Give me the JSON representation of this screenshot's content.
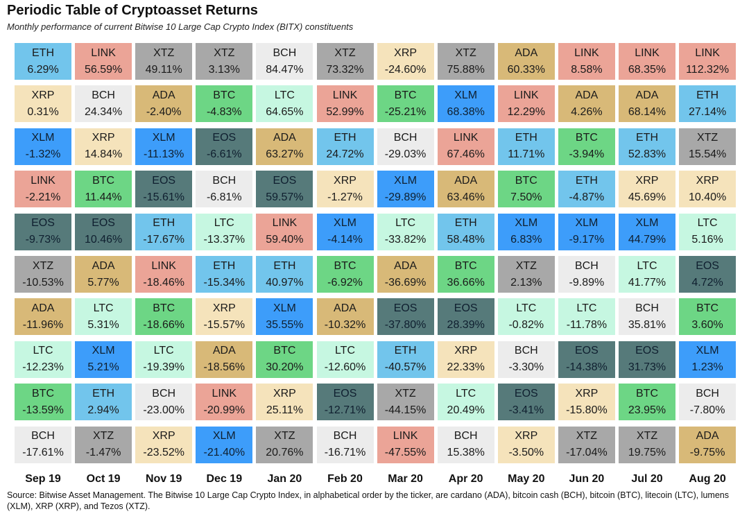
{
  "chart_data": {
    "type": "table",
    "title": "Periodic Table of Cryptoasset Returns",
    "subtitle": "Monthly performance of current Bitwise 10 Large Cap Crypto Index (BITX) constituents",
    "source": "Source: Bitwise Asset Management. The Bitwise 10 Large Cap Crypto Index, in alphabetical order by the ticker, are cardano (ADA), bitcoin cash (BCH), bitcoin (BTC), litecoin (LTC), lumens (XLM), XRP (XRP), and Tezos (XTZ).",
    "months": [
      "Sep 19",
      "Oct 19",
      "Nov 19",
      "Dec 19",
      "Jan 20",
      "Feb 20",
      "Mar 20",
      "Apr 20",
      "May 20",
      "Jun 20",
      "Jul 20",
      "Aug 20"
    ],
    "colors": {
      "ETH": "#72c5ec",
      "LINK": "#eba497",
      "XTZ": "#a8a8a8",
      "BCH": "#ececec",
      "XRP": "#f5e3bb",
      "ADA": "#d8b978",
      "BTC": "#6dd685",
      "LTC": "#c6f7e1",
      "XLM": "#3d9dfa",
      "EOS": "#567a7a"
    },
    "columns": [
      [
        [
          "ETH",
          "6.29%"
        ],
        [
          "XRP",
          "0.31%"
        ],
        [
          "XLM",
          "-1.32%"
        ],
        [
          "LINK",
          "-2.21%"
        ],
        [
          "EOS",
          "-9.73%"
        ],
        [
          "XTZ",
          "-10.53%"
        ],
        [
          "ADA",
          "-11.96%"
        ],
        [
          "LTC",
          "-12.23%"
        ],
        [
          "BTC",
          "-13.59%"
        ],
        [
          "BCH",
          "-17.61%"
        ]
      ],
      [
        [
          "LINK",
          "56.59%"
        ],
        [
          "BCH",
          "24.34%"
        ],
        [
          "XRP",
          "14.84%"
        ],
        [
          "BTC",
          "11.44%"
        ],
        [
          "EOS",
          "10.46%"
        ],
        [
          "ADA",
          "5.77%"
        ],
        [
          "LTC",
          "5.31%"
        ],
        [
          "XLM",
          "5.21%"
        ],
        [
          "ETH",
          "2.94%"
        ],
        [
          "XTZ",
          "-1.47%"
        ]
      ],
      [
        [
          "XTZ",
          "49.11%"
        ],
        [
          "ADA",
          "-2.40%"
        ],
        [
          "XLM",
          "-11.13%"
        ],
        [
          "EOS",
          "-15.61%"
        ],
        [
          "ETH",
          "-17.67%"
        ],
        [
          "LINK",
          "-18.46%"
        ],
        [
          "BTC",
          "-18.66%"
        ],
        [
          "LTC",
          "-19.39%"
        ],
        [
          "BCH",
          "-23.00%"
        ],
        [
          "XRP",
          "-23.52%"
        ]
      ],
      [
        [
          "XTZ",
          "3.13%"
        ],
        [
          "BTC",
          "-4.83%"
        ],
        [
          "EOS",
          "-6.61%"
        ],
        [
          "BCH",
          "-6.81%"
        ],
        [
          "LTC",
          "-13.37%"
        ],
        [
          "ETH",
          "-15.34%"
        ],
        [
          "XRP",
          "-15.57%"
        ],
        [
          "ADA",
          "-18.56%"
        ],
        [
          "LINK",
          "-20.99%"
        ],
        [
          "XLM",
          "-21.40%"
        ]
      ],
      [
        [
          "BCH",
          "84.47%"
        ],
        [
          "LTC",
          "64.65%"
        ],
        [
          "ADA",
          "63.27%"
        ],
        [
          "EOS",
          "59.57%"
        ],
        [
          "LINK",
          "59.40%"
        ],
        [
          "ETH",
          "40.97%"
        ],
        [
          "XLM",
          "35.55%"
        ],
        [
          "BTC",
          "30.20%"
        ],
        [
          "XRP",
          "25.11%"
        ],
        [
          "XTZ",
          "20.76%"
        ]
      ],
      [
        [
          "XTZ",
          "73.32%"
        ],
        [
          "LINK",
          "52.99%"
        ],
        [
          "ETH",
          "24.72%"
        ],
        [
          "XRP",
          "-1.27%"
        ],
        [
          "XLM",
          "-4.14%"
        ],
        [
          "BTC",
          "-6.92%"
        ],
        [
          "ADA",
          "-10.32%"
        ],
        [
          "LTC",
          "-12.60%"
        ],
        [
          "EOS",
          "-12.71%"
        ],
        [
          "BCH",
          "-16.71%"
        ]
      ],
      [
        [
          "XRP",
          "-24.60%"
        ],
        [
          "BTC",
          "-25.21%"
        ],
        [
          "BCH",
          "-29.03%"
        ],
        [
          "XLM",
          "-29.89%"
        ],
        [
          "LTC",
          "-33.82%"
        ],
        [
          "ADA",
          "-36.69%"
        ],
        [
          "EOS",
          "-37.80%"
        ],
        [
          "ETH",
          "-40.57%"
        ],
        [
          "XTZ",
          "-44.15%"
        ],
        [
          "LINK",
          "-47.55%"
        ]
      ],
      [
        [
          "XTZ",
          "75.88%"
        ],
        [
          "XLM",
          "68.38%"
        ],
        [
          "LINK",
          "67.46%"
        ],
        [
          "ADA",
          "63.46%"
        ],
        [
          "ETH",
          "58.48%"
        ],
        [
          "BTC",
          "36.66%"
        ],
        [
          "EOS",
          "28.39%"
        ],
        [
          "XRP",
          "22.33%"
        ],
        [
          "LTC",
          "20.49%"
        ],
        [
          "BCH",
          "15.38%"
        ]
      ],
      [
        [
          "ADA",
          "60.33%"
        ],
        [
          "LINK",
          "12.29%"
        ],
        [
          "ETH",
          "11.71%"
        ],
        [
          "BTC",
          "7.50%"
        ],
        [
          "XLM",
          "6.83%"
        ],
        [
          "XTZ",
          "2.13%"
        ],
        [
          "LTC",
          "-0.82%"
        ],
        [
          "BCH",
          "-3.30%"
        ],
        [
          "EOS",
          "-3.41%"
        ],
        [
          "XRP",
          "-3.50%"
        ]
      ],
      [
        [
          "LINK",
          "8.58%"
        ],
        [
          "ADA",
          "4.26%"
        ],
        [
          "BTC",
          "-3.94%"
        ],
        [
          "ETH",
          "-4.87%"
        ],
        [
          "XLM",
          "-9.17%"
        ],
        [
          "BCH",
          "-9.89%"
        ],
        [
          "LTC",
          "-11.78%"
        ],
        [
          "EOS",
          "-14.38%"
        ],
        [
          "XRP",
          "-15.80%"
        ],
        [
          "XTZ",
          "-17.04%"
        ]
      ],
      [
        [
          "LINK",
          "68.35%"
        ],
        [
          "ADA",
          "68.14%"
        ],
        [
          "ETH",
          "52.83%"
        ],
        [
          "XRP",
          "45.69%"
        ],
        [
          "XLM",
          "44.79%"
        ],
        [
          "LTC",
          "41.77%"
        ],
        [
          "BCH",
          "35.81%"
        ],
        [
          "EOS",
          "31.73%"
        ],
        [
          "BTC",
          "23.95%"
        ],
        [
          "XTZ",
          "19.75%"
        ]
      ],
      [
        [
          "LINK",
          "112.32%"
        ],
        [
          "ETH",
          "27.14%"
        ],
        [
          "XTZ",
          "15.54%"
        ],
        [
          "XRP",
          "10.40%"
        ],
        [
          "LTC",
          "5.16%"
        ],
        [
          "EOS",
          "4.72%"
        ],
        [
          "BTC",
          "3.60%"
        ],
        [
          "XLM",
          "1.23%"
        ],
        [
          "BCH",
          "-7.80%"
        ],
        [
          "ADA",
          "-9.75%"
        ]
      ]
    ]
  }
}
